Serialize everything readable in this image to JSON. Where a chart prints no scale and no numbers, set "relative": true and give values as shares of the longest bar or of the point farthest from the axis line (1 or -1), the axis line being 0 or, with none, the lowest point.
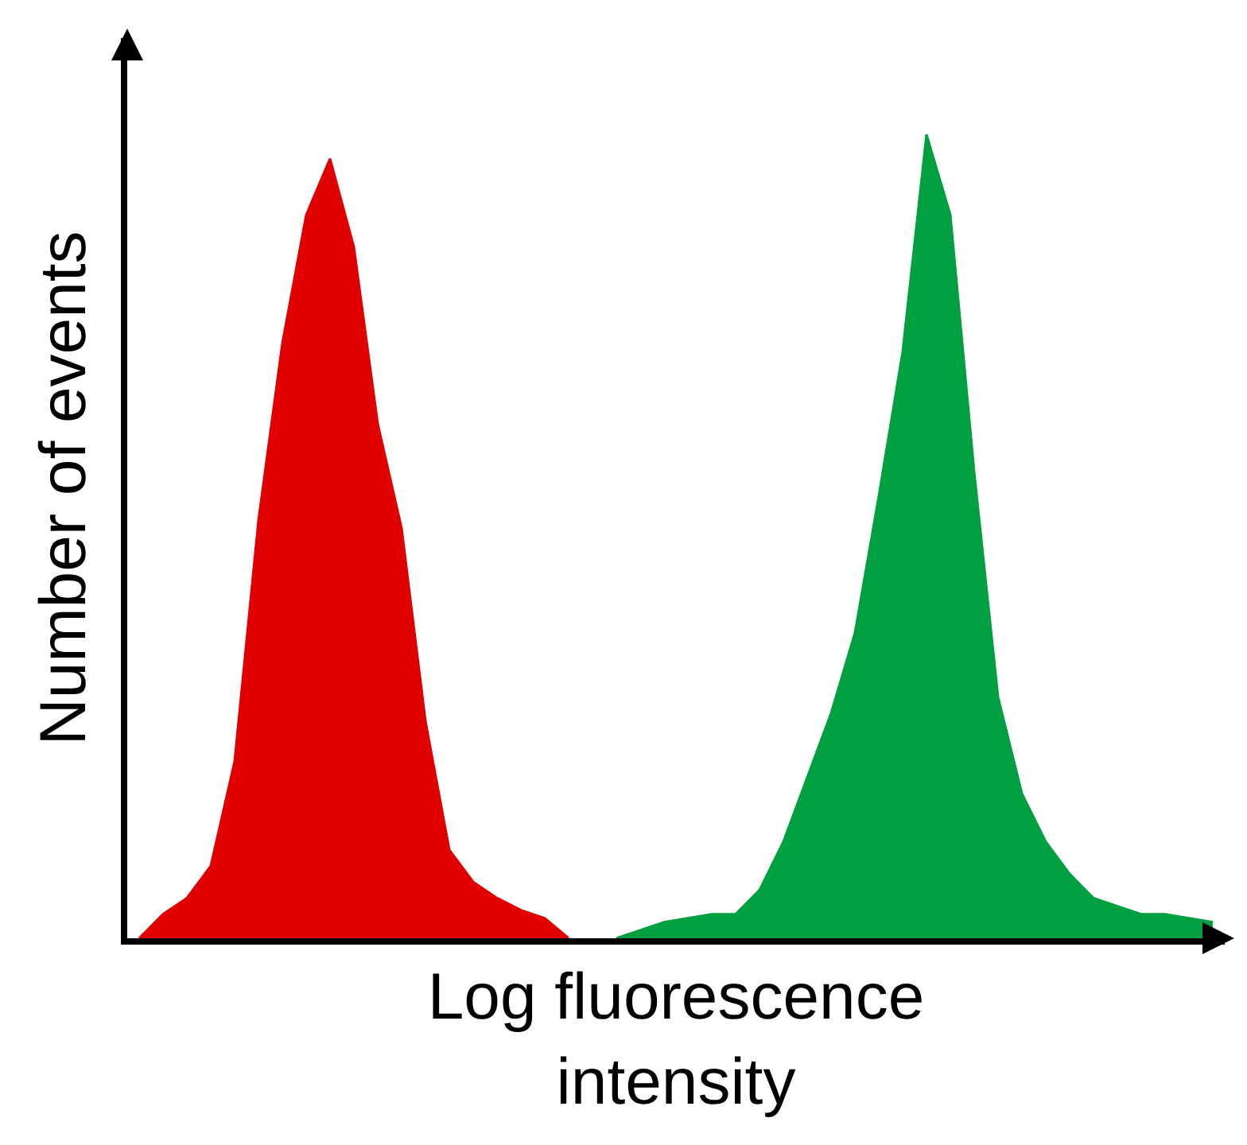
{
  "chart_data": {
    "type": "area",
    "relative": true,
    "xlabel": "Log fluorescence intensity",
    "ylabel": "Number of events",
    "categories": [
      null,
      null,
      null,
      null,
      null,
      null,
      null,
      null,
      null,
      null,
      null,
      null,
      null,
      null,
      null,
      null,
      null,
      null,
      null,
      null,
      null,
      null,
      null,
      null,
      null,
      null,
      null,
      null,
      null,
      null,
      null,
      null,
      null,
      null,
      null,
      null,
      null,
      null,
      null,
      null,
      null,
      null,
      null,
      null,
      null,
      null
    ],
    "series": [
      {
        "color": "#e00000",
        "values": [
          0,
          0.03,
          0.05,
          0.09,
          0.22,
          0.52,
          0.74,
          0.9,
          0.97,
          0.86,
          0.64,
          0.51,
          0.27,
          0.11,
          0.07,
          0.05,
          0.035,
          0.025,
          0,
          null,
          null,
          null,
          null,
          null,
          null,
          null,
          null,
          null,
          null,
          null,
          null,
          null,
          null,
          null,
          null,
          null,
          null,
          null,
          null,
          null,
          null,
          null,
          null,
          null,
          null,
          null
        ]
      },
      {
        "color": "#00a040",
        "values": [
          null,
          null,
          null,
          null,
          null,
          null,
          null,
          null,
          null,
          null,
          null,
          null,
          null,
          null,
          null,
          null,
          null,
          null,
          null,
          null,
          0,
          0.01,
          0.02,
          0.025,
          0.03,
          0.03,
          0.06,
          0.12,
          0.2,
          0.28,
          0.38,
          0.55,
          0.73,
          1,
          0.9,
          0.58,
          0.3,
          0.18,
          0.12,
          0.08,
          0.05,
          0.04,
          0.03,
          0.03,
          0.025,
          0.02
        ]
      }
    ]
  }
}
